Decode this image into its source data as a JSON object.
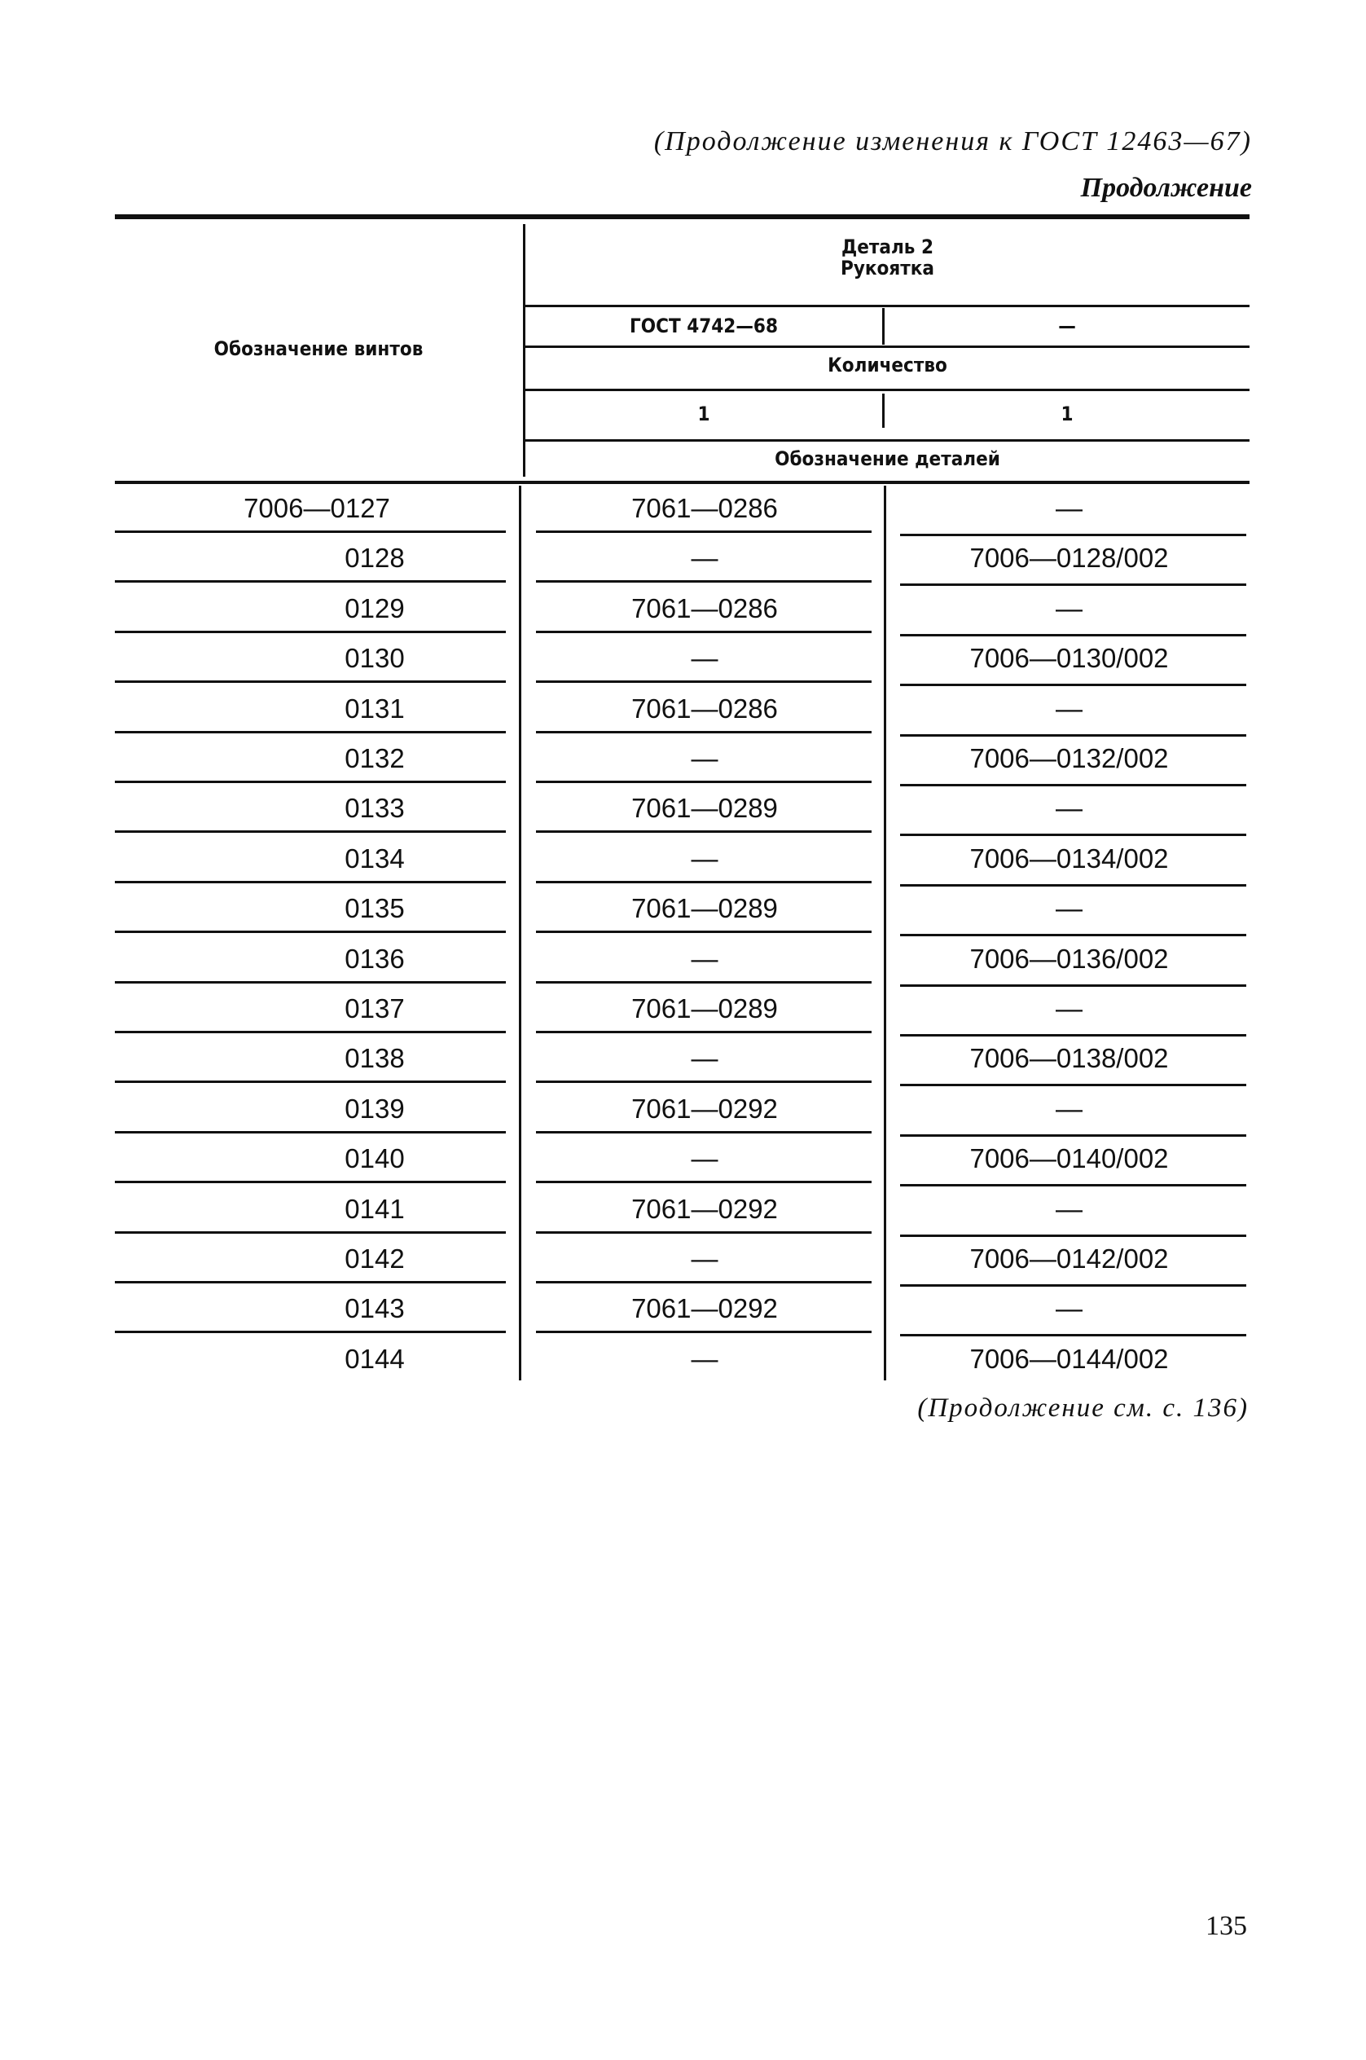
{
  "header": {
    "continuation_note": "(Продолжение изменения к ГОСТ 12463—67)",
    "continuation_label": "Продолжение"
  },
  "table": {
    "col_screws": "Обозначение винтов",
    "part_title": "Деталь 2",
    "part_name": "Рукоятка",
    "standard_1": "ГОСТ 4742—68",
    "standard_2": "—",
    "quantity_label": "Количество",
    "quantity_1": "1",
    "quantity_2": "1",
    "parts_designation_label": "Обозначение деталей",
    "rows": [
      {
        "screw": "7006—0127",
        "a": "7061—0286",
        "b": "—"
      },
      {
        "screw": "0128",
        "a": "—",
        "b": "7006—0128/002"
      },
      {
        "screw": "0129",
        "a": "7061—0286",
        "b": "—"
      },
      {
        "screw": "0130",
        "a": "—",
        "b": "7006—0130/002"
      },
      {
        "screw": "0131",
        "a": "7061—0286",
        "b": "—"
      },
      {
        "screw": "0132",
        "a": "—",
        "b": "7006—0132/002"
      },
      {
        "screw": "0133",
        "a": "7061—0289",
        "b": "—"
      },
      {
        "screw": "0134",
        "a": "—",
        "b": "7006—0134/002"
      },
      {
        "screw": "0135",
        "a": "7061—0289",
        "b": "—"
      },
      {
        "screw": "0136",
        "a": "—",
        "b": "7006—0136/002"
      },
      {
        "screw": "0137",
        "a": "7061—0289",
        "b": "—"
      },
      {
        "screw": "0138",
        "a": "—",
        "b": "7006—0138/002"
      },
      {
        "screw": "0139",
        "a": "7061—0292",
        "b": "—"
      },
      {
        "screw": "0140",
        "a": "—",
        "b": "7006—0140/002"
      },
      {
        "screw": "0141",
        "a": "7061—0292",
        "b": "—"
      },
      {
        "screw": "0142",
        "a": "—",
        "b": "7006—0142/002"
      },
      {
        "screw": "0143",
        "a": "7061—0292",
        "b": "—"
      },
      {
        "screw": "0144",
        "a": "—",
        "b": "7006—0144/002"
      }
    ]
  },
  "footer": {
    "continuation": "(Продолжение см. с. 136)",
    "page_number": "135"
  }
}
